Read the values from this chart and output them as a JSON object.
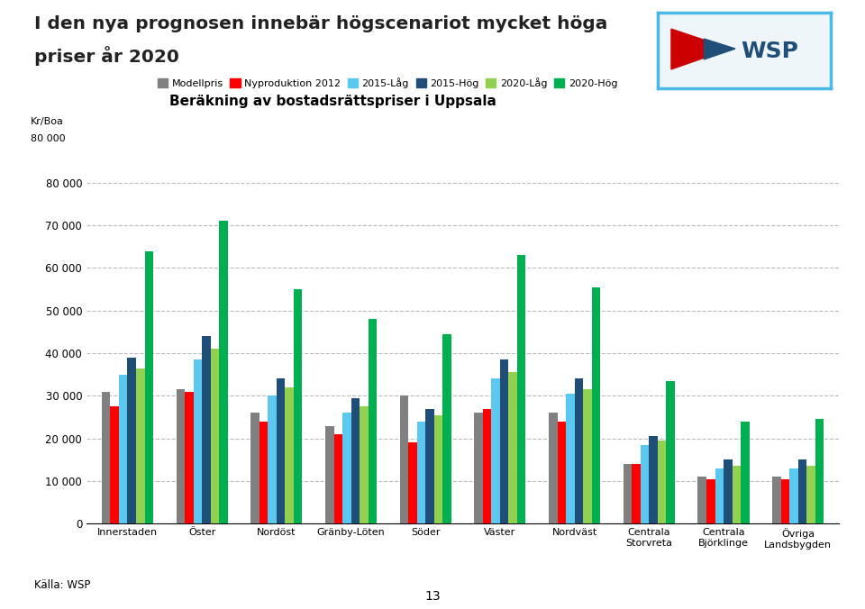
{
  "title_line1": "I den nya prognosen innebär högscenariot mycket höga",
  "title_line2": "priser år 2020",
  "subtitle": "Beräkning av bostadsrättspriser i Uppsala",
  "source": "Källa: WSP",
  "categories": [
    "Innerstaden",
    "Öster",
    "Nordöst",
    "Gränby-Löten",
    "Söder",
    "Väster",
    "Nordväst",
    "Centrala\nStorvreta",
    "Centrala\nBjörklinge",
    "Övriga\nLandsbygden"
  ],
  "series": {
    "Modellpris": [
      31000,
      31500,
      26000,
      23000,
      30000,
      26000,
      26000,
      14000,
      11000,
      11000
    ],
    "Nyproduktion 2012": [
      27500,
      31000,
      24000,
      21000,
      19000,
      27000,
      24000,
      14000,
      10500,
      10500
    ],
    "2015-Låg": [
      35000,
      38500,
      30000,
      26000,
      24000,
      34000,
      30500,
      18500,
      13000,
      13000
    ],
    "2015-Hög": [
      39000,
      44000,
      34000,
      29500,
      27000,
      38500,
      34000,
      20500,
      15000,
      15000
    ],
    "2020-Låg": [
      36500,
      41000,
      32000,
      27500,
      25500,
      35500,
      31500,
      19500,
      13500,
      13500
    ],
    "2020-Hög": [
      64000,
      71000,
      55000,
      48000,
      44500,
      63000,
      55500,
      33500,
      24000,
      24500
    ]
  },
  "colors": {
    "Modellpris": "#808080",
    "Nyproduktion 2012": "#FF0000",
    "2015-Låg": "#5BC8F0",
    "2015-Hög": "#1F4E79",
    "2020-Låg": "#92D050",
    "2020-Hög": "#00B050"
  },
  "ylim": [
    0,
    80000
  ],
  "yticks": [
    0,
    10000,
    20000,
    30000,
    40000,
    50000,
    60000,
    70000,
    80000
  ],
  "ytick_labels": [
    "0",
    "10 000",
    "20 000",
    "30 000",
    "40 000",
    "50 000",
    "60 000",
    "70 000",
    "80 000"
  ],
  "page_number": "13"
}
